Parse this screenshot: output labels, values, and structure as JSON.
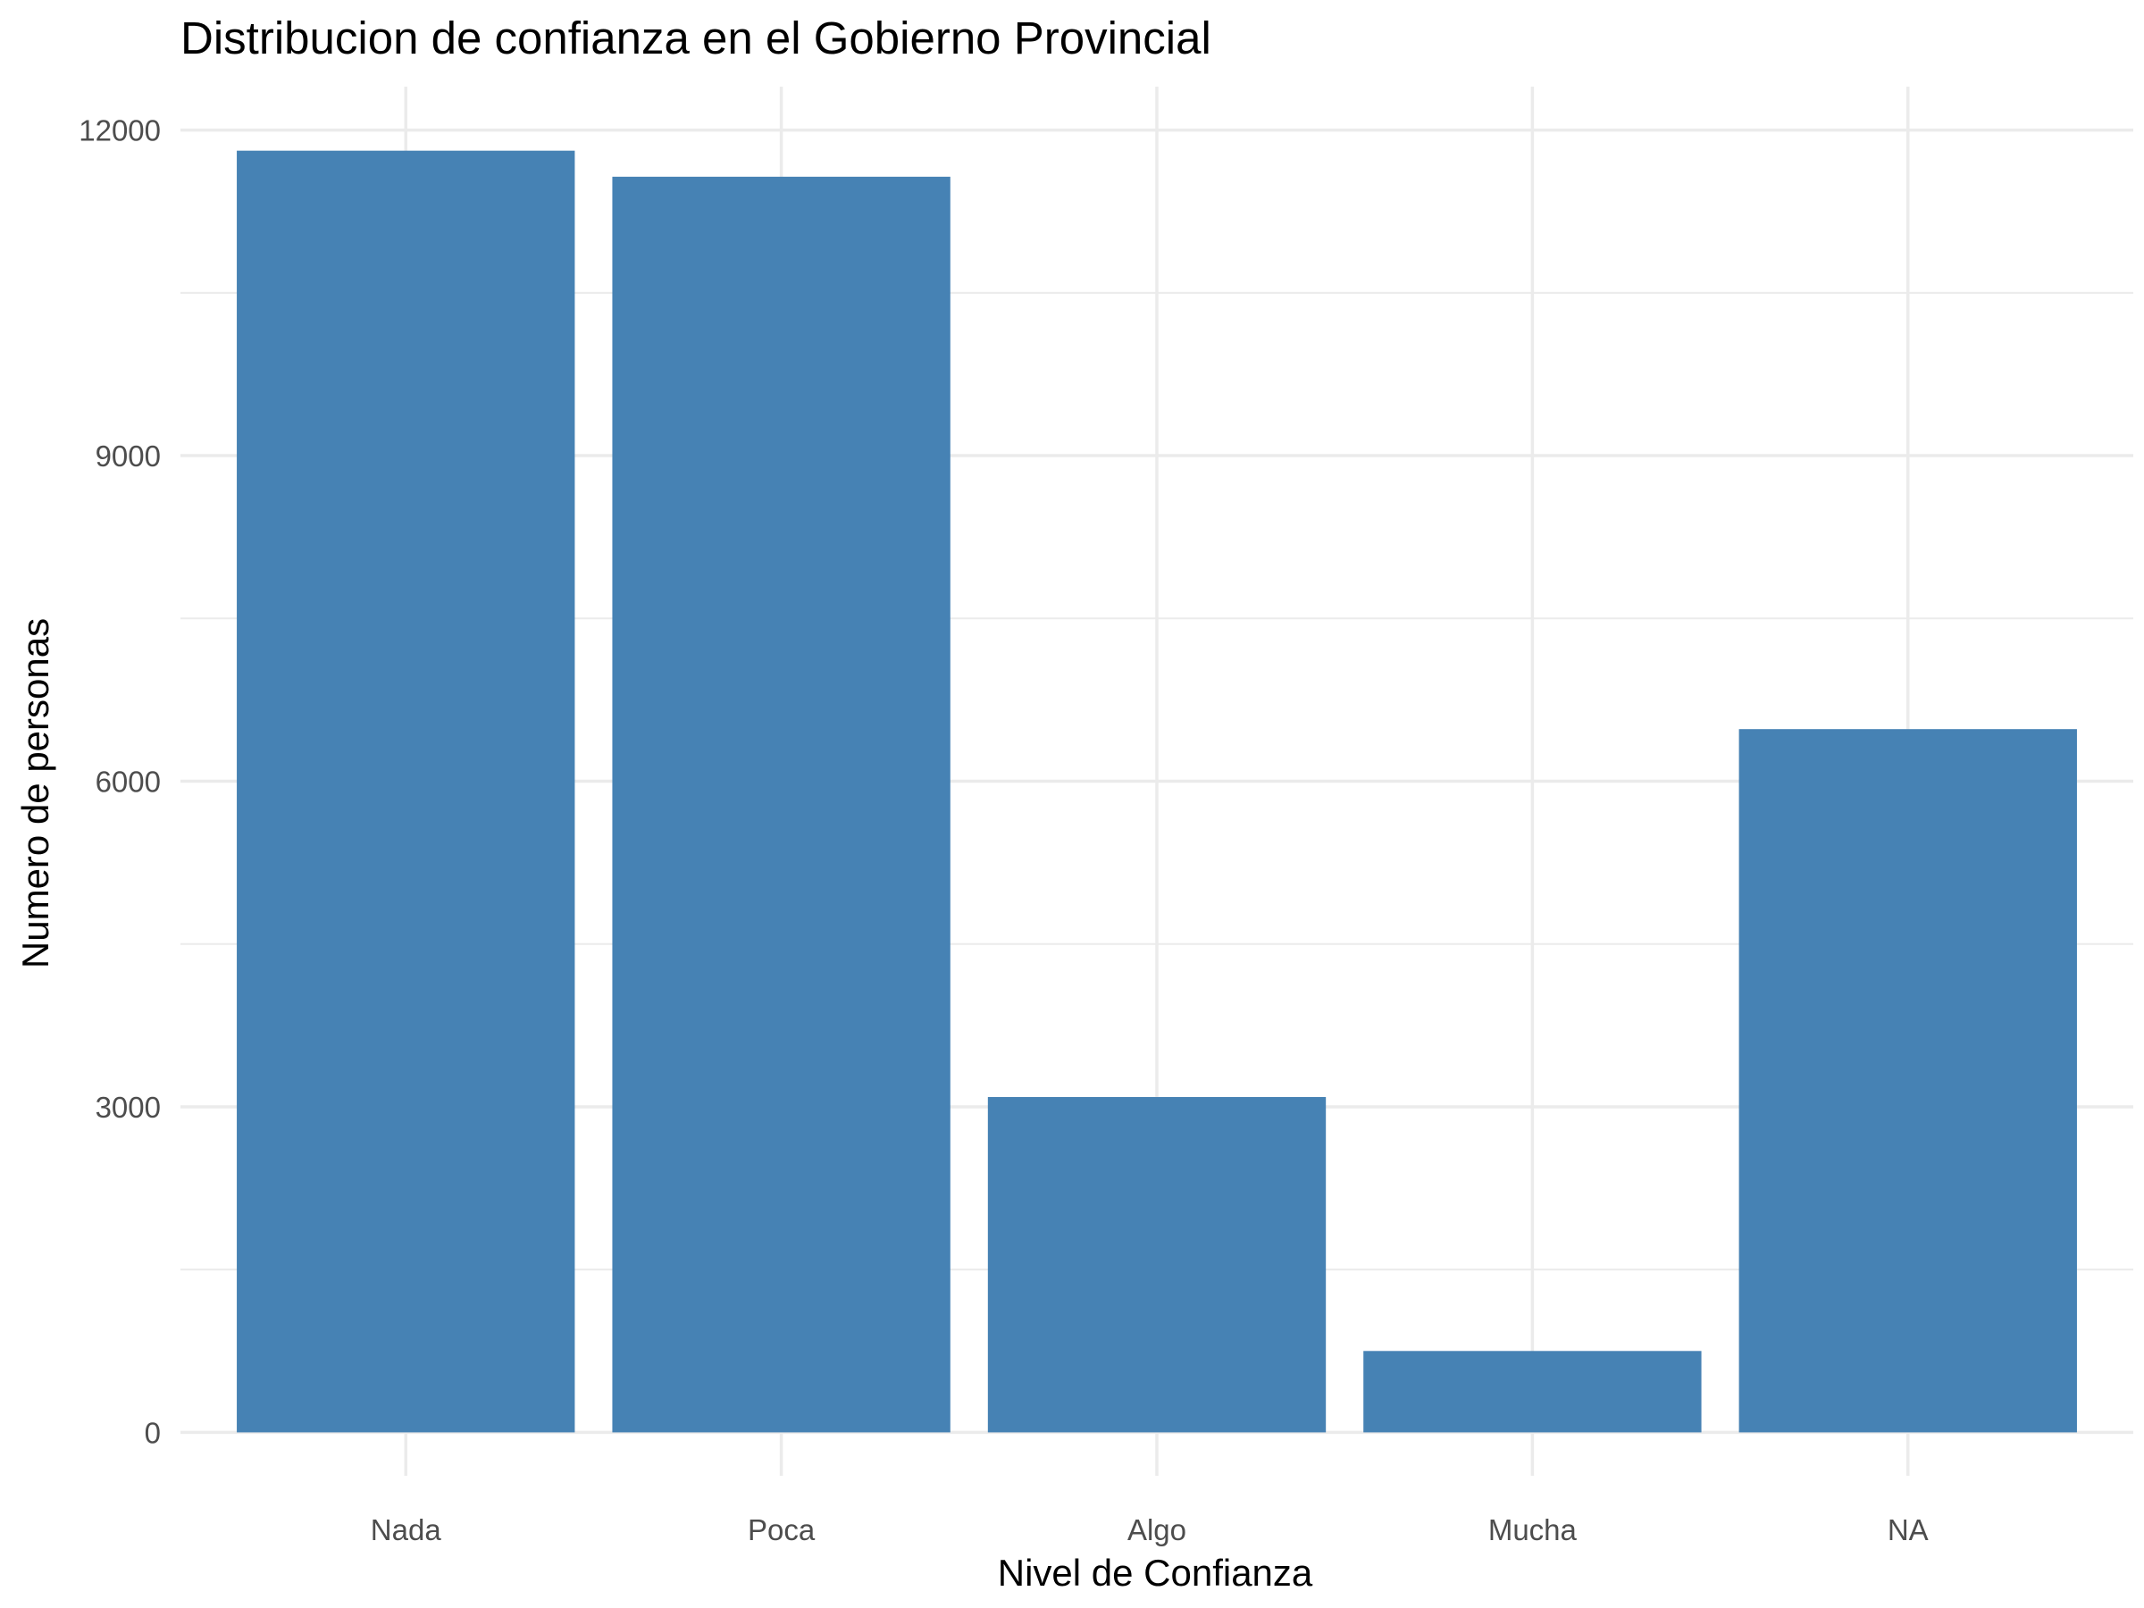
{
  "chart_data": {
    "type": "bar",
    "title": "Distribucion de confianza en el Gobierno Provincial",
    "xlabel": "Nivel de Confianza",
    "ylabel": "Numero de personas",
    "categories": [
      "Nada",
      "Poca",
      "Algo",
      "Mucha",
      "NA"
    ],
    "values": [
      11810,
      11570,
      3090,
      750,
      6480
    ],
    "ylim": [
      -400,
      12400
    ],
    "yticks": [
      0,
      3000,
      6000,
      9000,
      12000
    ],
    "yticks_minor": [
      1500,
      4500,
      7500,
      10500
    ],
    "ytick_labels": [
      "0",
      "3000",
      "6000",
      "9000",
      "12000"
    ],
    "grid": true,
    "legend": "none",
    "colors": {
      "bar": "#4682b4",
      "grid": "#ebebeb",
      "tick_text": "#4d4d4d",
      "text": "#000000",
      "background": "#ffffff"
    }
  }
}
